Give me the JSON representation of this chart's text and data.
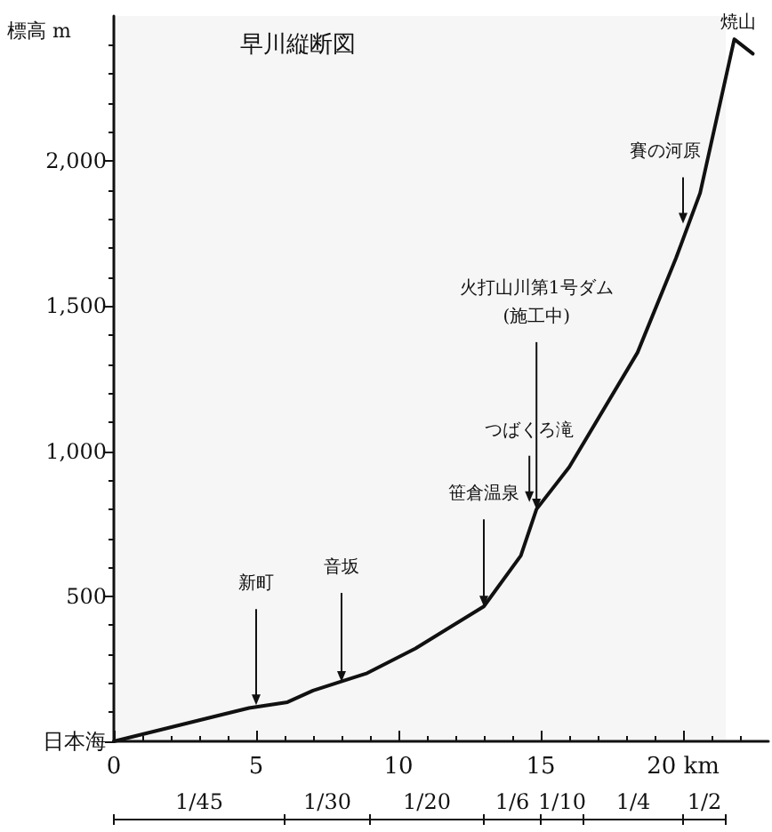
{
  "chart_data": {
    "type": "line",
    "title": "早川縦断図",
    "ylabel": "標高 m",
    "xlim": [
      0,
      23
    ],
    "ylim": [
      0,
      2500
    ],
    "xticks": [
      0,
      5,
      10,
      15,
      {
        "value": 20,
        "label": "20 km"
      }
    ],
    "yticks": [
      {
        "value": 0,
        "label": "日本海"
      },
      500,
      {
        "value": 1000,
        "label": "1,000"
      },
      {
        "value": 1500,
        "label": "1,500"
      },
      {
        "value": 2000,
        "label": "2,000"
      }
    ],
    "grid": false,
    "marker": "none",
    "line_style": "solid",
    "series": [
      {
        "color": "#111111",
        "x": [
          0,
          4.75,
          6.1,
          7.0,
          8.9,
          10.6,
          13.0,
          14.3,
          14.85,
          16.0,
          18.4,
          19.75,
          20.6,
          21.8,
          22.45
        ],
        "values": [
          0,
          115,
          135,
          175,
          235,
          320,
          465,
          640,
          800,
          945,
          1340,
          1665,
          1890,
          2420,
          2370
        ]
      }
    ],
    "annotations": [
      {
        "text": "新町",
        "x": 5,
        "y": 125
      },
      {
        "text": "音坂",
        "x": 8,
        "y": 205
      },
      {
        "text": "笹倉温泉",
        "x": 13,
        "y": 465
      },
      {
        "text": "つばくろ滝",
        "x": 14.6,
        "y": 825
      },
      {
        "text": "火打山川第1号ダム\n(施工中)",
        "x": 14.85,
        "y": 800
      },
      {
        "text": "賽の河原",
        "x": 20,
        "y": 1785
      },
      {
        "text": "焼山",
        "x": 21.8,
        "y": 2420
      }
    ],
    "bands": [
      {
        "axis": "x",
        "from": 0,
        "to": 6,
        "label": "1/45"
      },
      {
        "axis": "x",
        "from": 6,
        "to": 9,
        "label": "1/30"
      },
      {
        "axis": "x",
        "from": 9,
        "to": 13,
        "label": "1/20"
      },
      {
        "axis": "x",
        "from": 13,
        "to": 15,
        "label": "1/6"
      },
      {
        "axis": "x",
        "from": 15,
        "to": 16.5,
        "label": "1/10"
      },
      {
        "axis": "x",
        "from": 16.5,
        "to": 20,
        "label": "1/4"
      },
      {
        "axis": "x",
        "from": 20,
        "to": 21.5,
        "label": "1/2"
      }
    ]
  }
}
